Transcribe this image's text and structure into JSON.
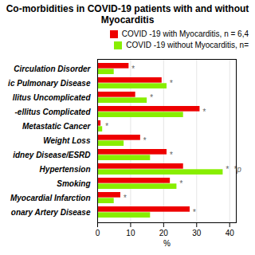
{
  "chart_data": {
    "type": "bar",
    "orientation": "horizontal",
    "title": "Co-morbidities in COVID-19 patients with and without Myocarditis",
    "xlabel": "%",
    "categories": [
      "Circulation Disorder",
      "ic Pulmonary Disease",
      "llitus Uncomplicated",
      "-ellitus Complicated",
      "Metastatic Cancer",
      "Weight Loss",
      "idney Disease/ESRD",
      "Hypertension",
      "Smoking",
      "Myocardial Infarction",
      "onary Artery Disease"
    ],
    "series": [
      {
        "name": "COVID -19 with Myocarditis, n = 6,4",
        "color": "#ee0000",
        "values": [
          9.5,
          19.5,
          11.5,
          31.0,
          1.0,
          13.0,
          21.0,
          26.0,
          22.0,
          7.0,
          28.0
        ]
      },
      {
        "name": "COVID -19 without Myocarditis, n=",
        "color": "#88ee00",
        "values": [
          5.0,
          21.0,
          15.0,
          26.0,
          1.5,
          8.0,
          16.0,
          38.0,
          24.0,
          5.0,
          16.0
        ]
      }
    ],
    "xlim": [
      0,
      42
    ],
    "xticks": [
      0,
      10,
      20,
      30,
      40
    ],
    "grid": true,
    "legend": "upper right",
    "annotations": [
      {
        "text": "*",
        "x": 9.5,
        "category": "Circulation Disorder"
      },
      {
        "text": "*",
        "x": 21.0,
        "category": "ic Pulmonary Disease"
      },
      {
        "text": "*",
        "x": 15.0,
        "category": "llitus Uncomplicated"
      },
      {
        "text": "*",
        "x": 31.0,
        "category": "-ellitus Complicated"
      },
      {
        "text": "*",
        "x": 1.5,
        "category": "Metastatic Cancer"
      },
      {
        "text": "*",
        "x": 13.0,
        "category": "Weight Loss"
      },
      {
        "text": "*",
        "x": 21.0,
        "category": "idney Disease/ESRD"
      },
      {
        "text": "*",
        "x": 38.0,
        "category": "Hypertension"
      },
      {
        "text": "*",
        "x": 24.0,
        "category": "Smoking"
      },
      {
        "text": "*",
        "x": 7.0,
        "category": "Myocardial Infarction"
      },
      {
        "text": "*",
        "x": 28.0,
        "category": "onary Artery Disease"
      },
      {
        "text": "*p",
        "x": 40.5,
        "category": "Hypertension"
      }
    ]
  }
}
